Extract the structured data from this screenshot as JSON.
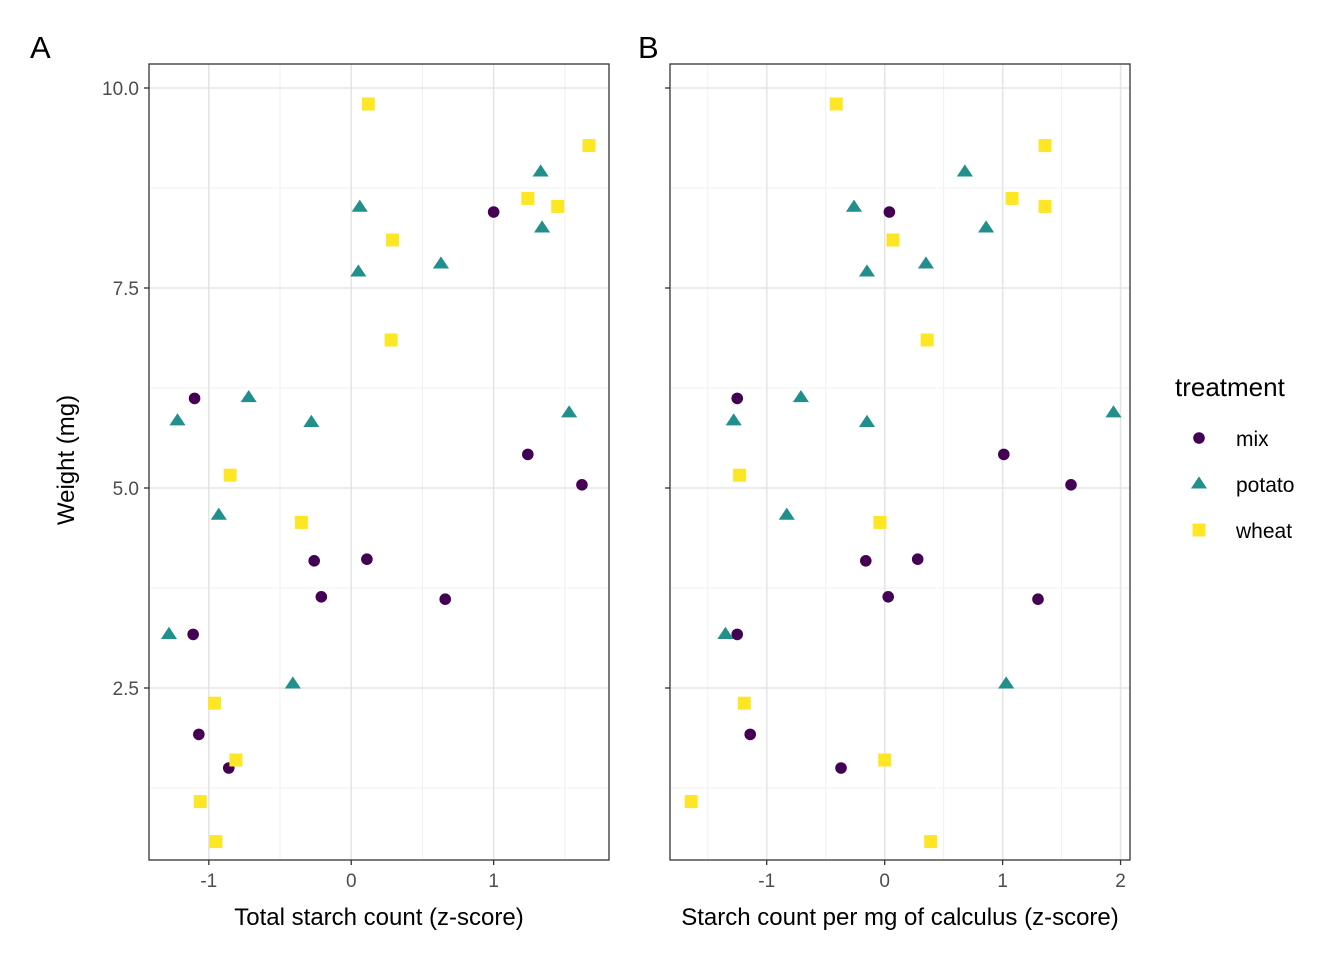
{
  "legend": {
    "title": "treatment",
    "entries": [
      {
        "label": "mix",
        "shape": "circle",
        "color": "#440154"
      },
      {
        "label": "potato",
        "shape": "triangle",
        "color": "#21908C"
      },
      {
        "label": "wheat",
        "shape": "square",
        "color": "#FDE725"
      }
    ]
  },
  "chart_data": [
    {
      "type": "scatter",
      "panel_tag": "A",
      "title": "",
      "xlabel": "Total starch count (z-score)",
      "ylabel": "Weight (mg)",
      "xlim": [
        -1.42,
        1.81
      ],
      "ylim": [
        0.35,
        10.3
      ],
      "xticks": [
        -1,
        0,
        1
      ],
      "xtick_labels": [
        "-1",
        "0",
        "1"
      ],
      "yticks": [
        2.5,
        5.0,
        7.5,
        10.0
      ],
      "ytick_labels": [
        "2.5",
        "5.0",
        "7.5",
        "10.0"
      ],
      "grid": true,
      "series": [
        {
          "name": "mix",
          "points": [
            [
              1.0,
              8.45
            ],
            [
              -1.1,
              6.12
            ],
            [
              1.24,
              5.42
            ],
            [
              1.62,
              5.04
            ],
            [
              -0.26,
              4.09
            ],
            [
              0.11,
              4.11
            ],
            [
              -0.21,
              3.64
            ],
            [
              0.66,
              3.61
            ],
            [
              -1.11,
              3.17
            ],
            [
              -1.07,
              1.92
            ],
            [
              -0.86,
              1.5
            ]
          ]
        },
        {
          "name": "potato",
          "points": [
            [
              1.33,
              8.95
            ],
            [
              0.06,
              8.51
            ],
            [
              1.34,
              8.25
            ],
            [
              0.05,
              7.7
            ],
            [
              0.63,
              7.8
            ],
            [
              -0.72,
              6.13
            ],
            [
              -1.22,
              5.84
            ],
            [
              -0.28,
              5.82
            ],
            [
              1.53,
              5.94
            ],
            [
              -0.93,
              4.66
            ],
            [
              -1.28,
              3.17
            ],
            [
              -0.41,
              2.55
            ]
          ]
        },
        {
          "name": "wheat",
          "points": [
            [
              0.12,
              9.8
            ],
            [
              1.67,
              9.28
            ],
            [
              1.24,
              8.62
            ],
            [
              1.45,
              8.52
            ],
            [
              0.29,
              8.1
            ],
            [
              0.28,
              6.85
            ],
            [
              -0.85,
              5.16
            ],
            [
              -0.35,
              4.57
            ],
            [
              -0.96,
              2.31
            ],
            [
              -0.81,
              1.6
            ],
            [
              -1.06,
              1.08
            ],
            [
              -0.95,
              0.58
            ]
          ]
        }
      ]
    },
    {
      "type": "scatter",
      "panel_tag": "B",
      "title": "",
      "xlabel": "Starch count per mg of calculus (z-score)",
      "ylabel": "",
      "xlim": [
        -1.82,
        2.08
      ],
      "ylim": [
        0.35,
        10.3
      ],
      "xticks": [
        -1,
        0,
        1,
        2
      ],
      "xtick_labels": [
        "-1",
        "0",
        "1",
        "2"
      ],
      "yticks": [
        2.5,
        5.0,
        7.5,
        10.0
      ],
      "ytick_labels": [],
      "grid": true,
      "series": [
        {
          "name": "mix",
          "points": [
            [
              0.04,
              8.45
            ],
            [
              -1.25,
              6.12
            ],
            [
              1.01,
              5.42
            ],
            [
              1.58,
              5.04
            ],
            [
              -0.16,
              4.09
            ],
            [
              0.28,
              4.11
            ],
            [
              0.03,
              3.64
            ],
            [
              1.3,
              3.61
            ],
            [
              -1.25,
              3.17
            ],
            [
              -1.14,
              1.92
            ],
            [
              -0.37,
              1.5
            ]
          ]
        },
        {
          "name": "potato",
          "points": [
            [
              0.68,
              8.95
            ],
            [
              -0.26,
              8.51
            ],
            [
              0.86,
              8.25
            ],
            [
              -0.15,
              7.7
            ],
            [
              0.35,
              7.8
            ],
            [
              -0.71,
              6.13
            ],
            [
              -1.28,
              5.84
            ],
            [
              -0.15,
              5.82
            ],
            [
              1.94,
              5.94
            ],
            [
              -0.83,
              4.66
            ],
            [
              -1.35,
              3.17
            ],
            [
              1.03,
              2.55
            ]
          ]
        },
        {
          "name": "wheat",
          "points": [
            [
              -0.41,
              9.8
            ],
            [
              1.36,
              9.28
            ],
            [
              1.08,
              8.62
            ],
            [
              1.36,
              8.52
            ],
            [
              0.07,
              8.1
            ],
            [
              0.36,
              6.85
            ],
            [
              -1.23,
              5.16
            ],
            [
              -0.04,
              4.57
            ],
            [
              -1.19,
              2.31
            ],
            [
              0.0,
              1.6
            ],
            [
              -1.64,
              1.08
            ],
            [
              0.39,
              0.58
            ]
          ]
        }
      ]
    }
  ]
}
